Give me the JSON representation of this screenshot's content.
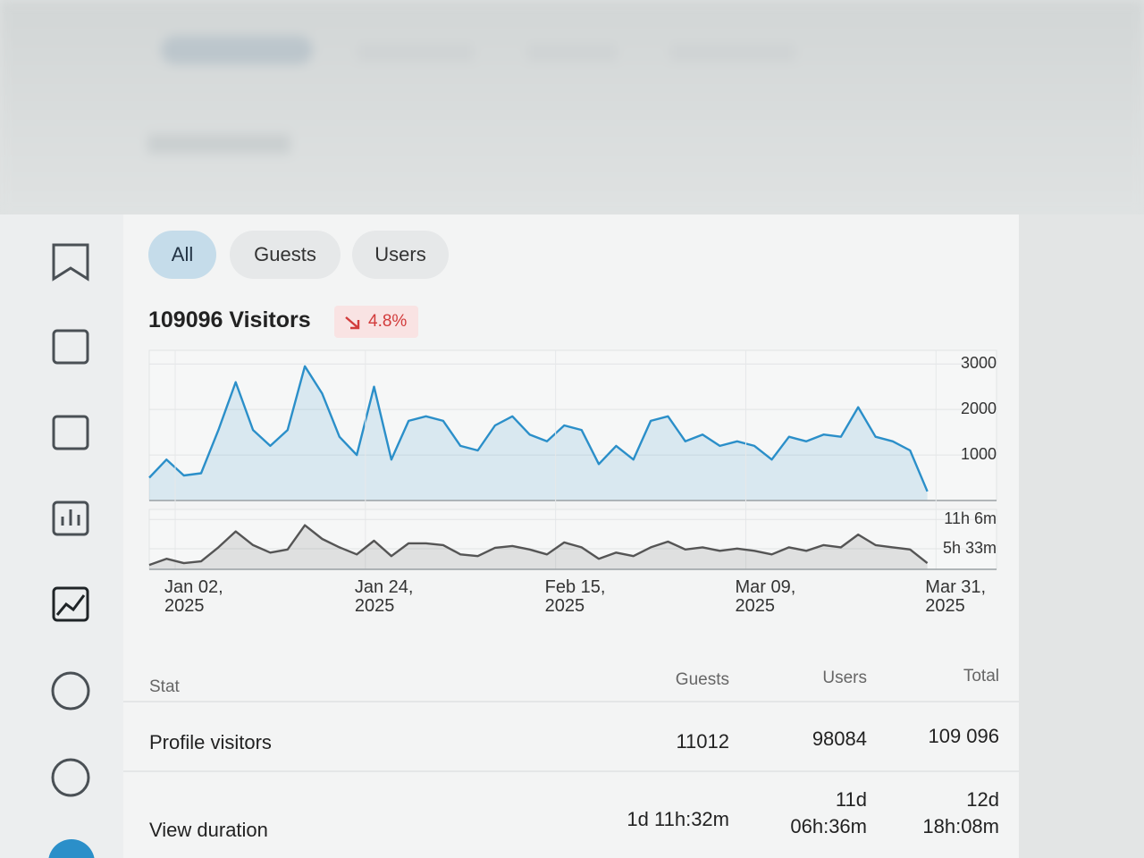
{
  "tabs": [
    "All",
    "Guests",
    "Users"
  ],
  "headline": "109096 Visitors",
  "change": "4.8%",
  "chart_data": [
    {
      "type": "area",
      "color": "#2b8fc9",
      "x": [
        "2024-12-30",
        "2025-01-01",
        "2025-01-03",
        "2025-01-05",
        "2025-01-07",
        "2025-01-09",
        "2025-01-11",
        "2025-01-13",
        "2025-01-15",
        "2025-01-17",
        "2025-01-19",
        "2025-01-21",
        "2025-01-23",
        "2025-01-25",
        "2025-01-27",
        "2025-01-29",
        "2025-01-31",
        "2025-02-02",
        "2025-02-04",
        "2025-02-06",
        "2025-02-08",
        "2025-02-10",
        "2025-02-12",
        "2025-02-14",
        "2025-02-16",
        "2025-02-18",
        "2025-02-20",
        "2025-02-22",
        "2025-02-24",
        "2025-02-26",
        "2025-02-28",
        "2025-03-02",
        "2025-03-04",
        "2025-03-06",
        "2025-03-08",
        "2025-03-10",
        "2025-03-12",
        "2025-03-14",
        "2025-03-16",
        "2025-03-18",
        "2025-03-20",
        "2025-03-22",
        "2025-03-24",
        "2025-03-26",
        "2025-03-28",
        "2025-03-30"
      ],
      "values": [
        500,
        900,
        550,
        600,
        1550,
        2600,
        1550,
        1200,
        1550,
        2950,
        2350,
        1400,
        1000,
        2500,
        900,
        1750,
        1850,
        1750,
        1200,
        1100,
        1650,
        1850,
        1450,
        1300,
        1650,
        1550,
        800,
        1200,
        900,
        1750,
        1850,
        1300,
        1450,
        1200,
        1300,
        1200,
        900,
        1400,
        1300,
        1450,
        1400,
        2050,
        1400,
        1300,
        1100,
        200
      ],
      "xlim": [
        "2024-12-30",
        "2025-04-07"
      ],
      "ylim": [
        0,
        3300
      ],
      "yticks": [
        1000,
        2000,
        3000
      ],
      "grid": true
    },
    {
      "type": "area",
      "color": "#555555",
      "x": [
        "2024-12-30",
        "2025-01-01",
        "2025-01-03",
        "2025-01-05",
        "2025-01-07",
        "2025-01-09",
        "2025-01-11",
        "2025-01-13",
        "2025-01-15",
        "2025-01-17",
        "2025-01-19",
        "2025-01-21",
        "2025-01-23",
        "2025-01-25",
        "2025-01-27",
        "2025-01-29",
        "2025-01-31",
        "2025-02-02",
        "2025-02-04",
        "2025-02-06",
        "2025-02-08",
        "2025-02-10",
        "2025-02-12",
        "2025-02-14",
        "2025-02-16",
        "2025-02-18",
        "2025-02-20",
        "2025-02-22",
        "2025-02-24",
        "2025-02-26",
        "2025-02-28",
        "2025-03-02",
        "2025-03-04",
        "2025-03-06",
        "2025-03-08",
        "2025-03-10",
        "2025-03-12",
        "2025-03-14",
        "2025-03-16",
        "2025-03-18",
        "2025-03-20",
        "2025-03-22",
        "2025-03-24",
        "2025-03-26",
        "2025-03-28",
        "2025-03-30"
      ],
      "values": [
        150,
        220,
        170,
        190,
        350,
        530,
        375,
        290,
        325,
        600,
        445,
        350,
        270,
        425,
        250,
        395,
        395,
        375,
        270,
        250,
        345,
        365,
        325,
        270,
        405,
        350,
        220,
        290,
        250,
        350,
        415,
        325,
        350,
        310,
        335,
        310,
        270,
        350,
        310,
        375,
        350,
        495,
        375,
        350,
        325,
        170
      ],
      "xlim": [
        "2024-12-30",
        "2025-04-07"
      ],
      "ylim": [
        100,
        780
      ],
      "yticks": [
        {
          "value": 333,
          "label": "5h 33m"
        },
        {
          "value": 666,
          "label": "11h 6m"
        }
      ],
      "xticks": [
        {
          "value": "2025-01-02",
          "label": "Jan 02, 2025"
        },
        {
          "value": "2025-01-24",
          "label": "Jan 24, 2025"
        },
        {
          "value": "2025-02-15",
          "label": "Feb 15, 2025"
        },
        {
          "value": "2025-03-09",
          "label": "Mar 09, 2025"
        },
        {
          "value": "2025-03-31",
          "label": "Mar 31, 2025"
        }
      ],
      "grid": true
    }
  ],
  "table": {
    "header": [
      "Stat",
      "Guests",
      "Users",
      "Total"
    ],
    "rows": [
      [
        "Profile visitors",
        "11012",
        "98084",
        "109 096"
      ],
      [
        "View duration",
        "1d 11h:32m",
        "11d 06h:36m",
        "12d 18h:08m"
      ]
    ]
  }
}
